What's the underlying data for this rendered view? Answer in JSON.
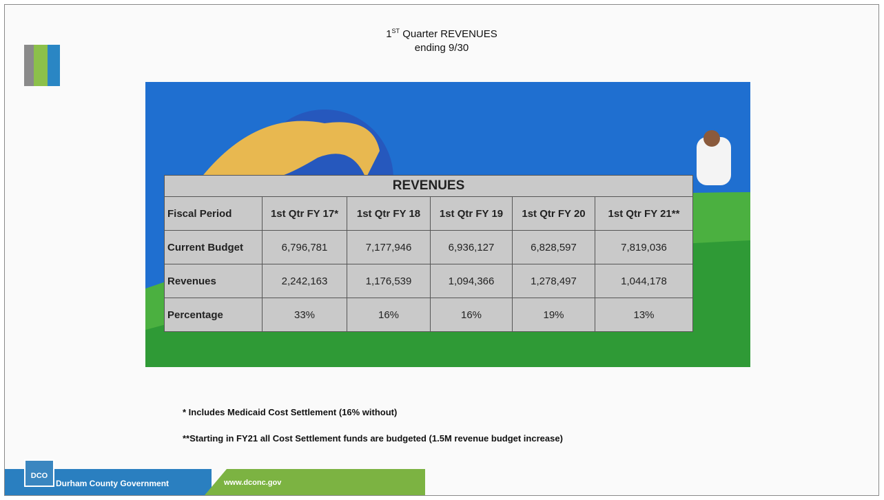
{
  "header": {
    "title_number": "1",
    "title_suffix": "ST",
    "title_text": "Quarter REVENUES",
    "subtitle": "ending 9/30"
  },
  "table": {
    "title": "REVENUES",
    "columns": [
      "Fiscal Period",
      "1st Qtr FY 17*",
      "1st Qtr FY 18",
      "1st Qtr FY 19",
      "1st Qtr FY 20",
      "1st Qtr FY 21**"
    ],
    "rows": [
      [
        "Current Budget",
        "6,796,781",
        "7,177,946",
        "6,936,127",
        "6,828,597",
        "7,819,036"
      ],
      [
        "Revenues",
        "2,242,163",
        "1,176,539",
        "1,094,366",
        "1,278,497",
        "1,044,178"
      ],
      [
        "Percentage",
        "33%",
        "16%",
        "16%",
        "19%",
        "13%"
      ]
    ]
  },
  "notes": [
    "* Includes Medicaid Cost Settlement (16% without)",
    "**Starting in FY21 all Cost Settlement funds are budgeted (1.5M revenue budget increase)"
  ],
  "footer": {
    "logo": "DCO",
    "organization": "Durham County Government",
    "website": "www.dconc.gov"
  }
}
